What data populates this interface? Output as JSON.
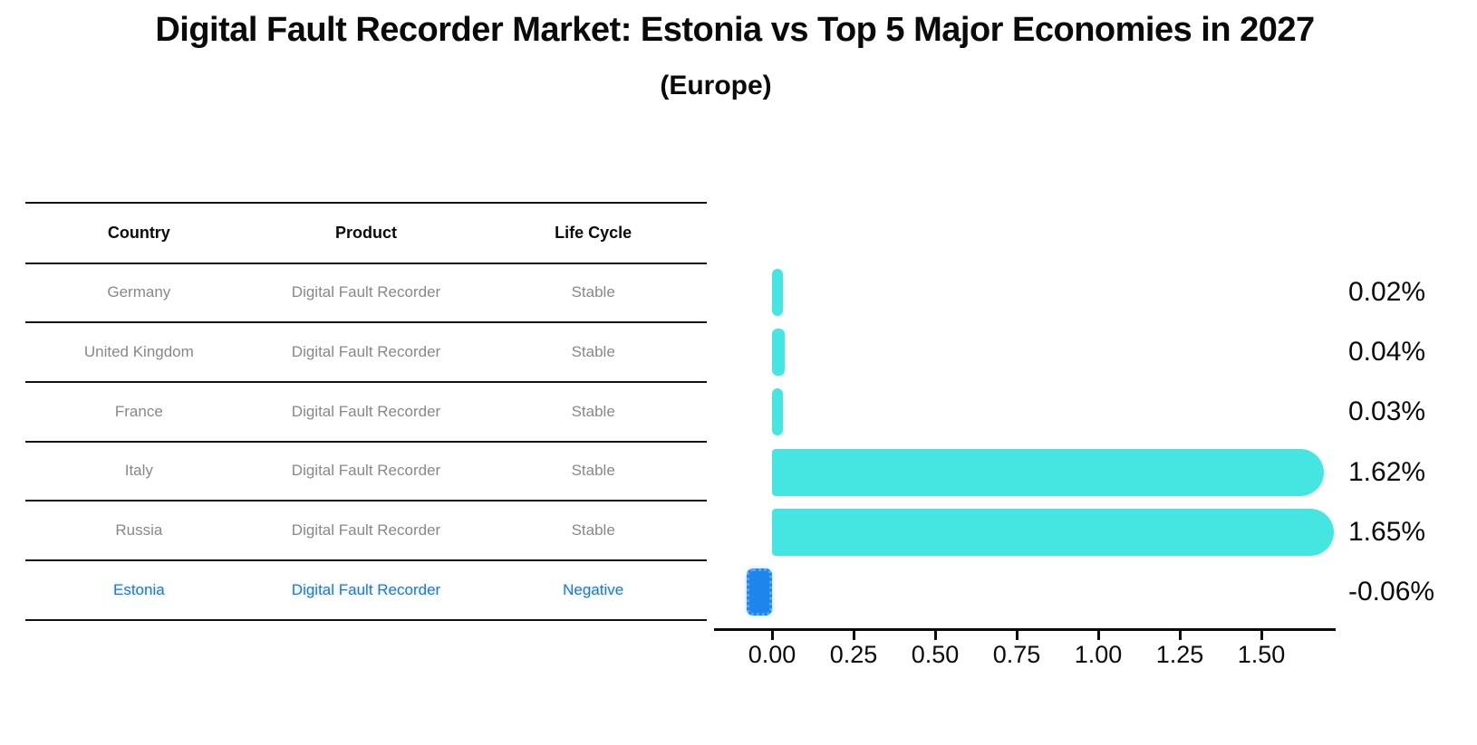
{
  "chart_data": {
    "type": "bar",
    "orientation": "horizontal",
    "title": "Digital Fault Recorder Market: Estonia vs Top 5 Major Economies in 2027",
    "subtitle": "(Europe)",
    "categories": [
      "Germany",
      "United Kingdom",
      "France",
      "Italy",
      "Russia",
      "Estonia"
    ],
    "values": [
      0.02,
      0.04,
      0.03,
      1.62,
      1.65,
      -0.06
    ],
    "value_labels": [
      "0.02%",
      "0.04%",
      "0.03%",
      "1.62%",
      "1.65%",
      "-0.06%"
    ],
    "x_ticks": [
      {
        "label": "0.00",
        "value": 0.0
      },
      {
        "label": "0.25",
        "value": 0.25
      },
      {
        "label": "0.50",
        "value": 0.5
      },
      {
        "label": "0.75",
        "value": 0.75
      },
      {
        "label": "1.00",
        "value": 1.0
      },
      {
        "label": "1.25",
        "value": 1.25
      },
      {
        "label": "1.50",
        "value": 1.5
      }
    ],
    "xlim": [
      -0.18,
      1.73
    ],
    "grid": false,
    "legend": null,
    "unit": "percent"
  },
  "table": {
    "headers": [
      "Country",
      "Product",
      "Life Cycle"
    ],
    "rows": [
      {
        "country": "Germany",
        "product": "Digital Fault Recorder",
        "life_cycle": "Stable",
        "highlight": false
      },
      {
        "country": "United Kingdom",
        "product": "Digital Fault Recorder",
        "life_cycle": "Stable",
        "highlight": false
      },
      {
        "country": "France",
        "product": "Digital Fault Recorder",
        "life_cycle": "Stable",
        "highlight": false
      },
      {
        "country": "Italy",
        "product": "Digital Fault Recorder",
        "life_cycle": "Stable",
        "highlight": false
      },
      {
        "country": "Russia",
        "product": "Digital Fault Recorder",
        "life_cycle": "Stable",
        "highlight": false
      },
      {
        "country": "Estonia",
        "product": "Digital Fault Recorder",
        "life_cycle": "Negative",
        "highlight": true
      }
    ]
  },
  "colors": {
    "bar": "#45E6E2",
    "negative_bar_fill": "#1E85EC",
    "negative_bar_edge": "#55A9F7",
    "highlight_text": "#2878BE",
    "table_text": "#888888",
    "axis_text": "#0A0A0A"
  }
}
